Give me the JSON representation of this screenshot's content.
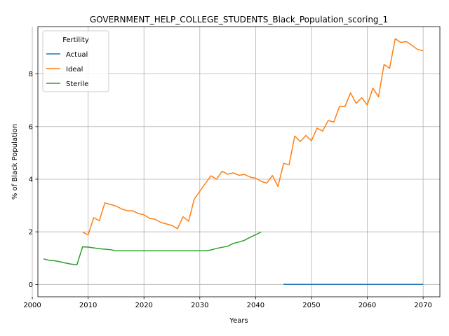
{
  "chart_data": {
    "type": "line",
    "title": "GOVERNMENT_HELP_COLLEGE_STUDENTS_Black_Population_scoring_1",
    "xlabel": "Years",
    "ylabel": "% of Black Population",
    "xlim": [
      2001,
      2073
    ],
    "ylim": [
      -0.47,
      9.8
    ],
    "xticks": [
      2000,
      2010,
      2020,
      2030,
      2040,
      2050,
      2060,
      2070
    ],
    "yticks": [
      0,
      2,
      4,
      6,
      8
    ],
    "grid": true,
    "legend": {
      "title": "Fertility",
      "placement": "top-left"
    },
    "series": [
      {
        "name": "Actual",
        "color": "#1f77b4",
        "x": [
          2045,
          2046,
          2047,
          2048,
          2049,
          2050,
          2051,
          2052,
          2053,
          2054,
          2055,
          2056,
          2057,
          2058,
          2059,
          2060,
          2061,
          2062,
          2063,
          2064,
          2065,
          2066,
          2067,
          2068,
          2069,
          2070
        ],
        "y": [
          0,
          0,
          0,
          0,
          0,
          0,
          0,
          0,
          0,
          0,
          0,
          0,
          0,
          0,
          0,
          0,
          0,
          0,
          0,
          0,
          0,
          0,
          0,
          0,
          0,
          0
        ]
      },
      {
        "name": "Ideal",
        "color": "#ff7f0e",
        "x": [
          2009,
          2010,
          2011,
          2012,
          2013,
          2014,
          2015,
          2016,
          2017,
          2018,
          2019,
          2020,
          2021,
          2022,
          2023,
          2024,
          2025,
          2026,
          2027,
          2028,
          2029,
          2030,
          2031,
          2032,
          2033,
          2034,
          2035,
          2036,
          2037,
          2038,
          2039,
          2040,
          2041,
          2042,
          2043,
          2044,
          2045,
          2046,
          2047,
          2048,
          2049,
          2050,
          2051,
          2052,
          2053,
          2054,
          2055,
          2056,
          2057,
          2058,
          2059,
          2060,
          2061,
          2062,
          2063,
          2064,
          2065,
          2066,
          2067,
          2068,
          2069,
          2070
        ],
        "y": [
          1.99,
          1.88,
          2.54,
          2.42,
          3.1,
          3.04,
          2.98,
          2.87,
          2.8,
          2.8,
          2.69,
          2.65,
          2.51,
          2.48,
          2.36,
          2.3,
          2.24,
          2.12,
          2.57,
          2.4,
          3.24,
          3.54,
          3.84,
          4.13,
          4.0,
          4.3,
          4.19,
          4.24,
          4.15,
          4.18,
          4.08,
          4.04,
          3.92,
          3.85,
          4.14,
          3.72,
          4.6,
          4.55,
          5.64,
          5.43,
          5.66,
          5.46,
          5.94,
          5.83,
          6.23,
          6.17,
          6.76,
          6.76,
          7.28,
          6.88,
          7.1,
          6.82,
          7.46,
          7.13,
          8.36,
          8.22,
          9.34,
          9.2,
          9.23,
          9.09,
          8.93,
          8.88
        ]
      },
      {
        "name": "Sterile",
        "color": "#2ca02c",
        "x": [
          2002,
          2003,
          2004,
          2005,
          2006,
          2007,
          2008,
          2009,
          2010,
          2011,
          2012,
          2013,
          2014,
          2015,
          2016,
          2017,
          2018,
          2019,
          2020,
          2021,
          2022,
          2023,
          2024,
          2025,
          2026,
          2027,
          2028,
          2029,
          2030,
          2031,
          2032,
          2033,
          2034,
          2035,
          2036,
          2037,
          2038,
          2039,
          2040,
          2041
        ],
        "y": [
          0.97,
          0.92,
          0.9,
          0.86,
          0.81,
          0.77,
          0.75,
          1.43,
          1.42,
          1.39,
          1.36,
          1.34,
          1.32,
          1.28,
          1.28,
          1.28,
          1.28,
          1.28,
          1.28,
          1.28,
          1.28,
          1.28,
          1.28,
          1.28,
          1.28,
          1.28,
          1.28,
          1.28,
          1.28,
          1.28,
          1.31,
          1.37,
          1.41,
          1.45,
          1.56,
          1.61,
          1.68,
          1.79,
          1.89,
          1.99
        ]
      }
    ]
  }
}
